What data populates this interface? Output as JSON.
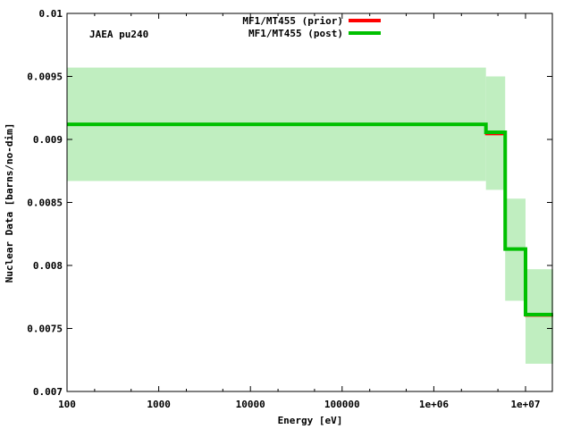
{
  "chart_data": {
    "type": "line",
    "title": "",
    "annotation": "JAEA pu240",
    "xlabel": "Energy [eV]",
    "ylabel": "Nuclear Data [barns/no-dim]",
    "xscale": "log",
    "xlim": [
      100,
      20000000
    ],
    "ylim": [
      0.007,
      0.01
    ],
    "xticks": [
      100,
      1000,
      10000,
      100000,
      1000000,
      10000000
    ],
    "xtick_labels": [
      "100",
      "1000",
      "10000",
      "100000",
      "1e+06",
      "1e+07"
    ],
    "yticks": [
      0.007,
      0.0075,
      0.008,
      0.0085,
      0.009,
      0.0095,
      0.01
    ],
    "ytick_labels": [
      "0.007",
      "0.0075",
      "0.008",
      "0.0085",
      "0.009",
      "0.0095",
      "0.01"
    ],
    "legend_position": "top-center",
    "bin_edges": [
      100,
      3700000,
      6000000,
      10000000,
      20000000
    ],
    "series": [
      {
        "name": "MF1/MT455 (prior)",
        "color": "#ff0000",
        "values": [
          0.00912,
          0.00904,
          0.00813,
          0.0076
        ]
      },
      {
        "name": "MF1/MT455 (post)",
        "color": "#00c000",
        "values": [
          0.00912,
          0.009057,
          0.00813,
          0.00761
        ]
      }
    ],
    "uncertainty_band": {
      "color": "#c0eec0",
      "lower": [
        0.00867,
        0.0086,
        0.00772,
        0.00722
      ],
      "upper": [
        0.00957,
        0.0095,
        0.00853,
        0.00797
      ]
    }
  }
}
